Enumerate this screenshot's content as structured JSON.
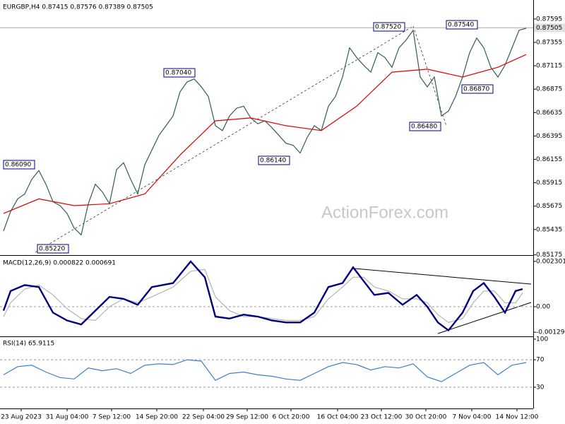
{
  "chart_data": [
    {
      "type": "line",
      "title": "EURGBP,H4  0.87415 0.87576 0.87389 0.87505",
      "watermark": "ActionForex.com",
      "xlim": [
        -0.5,
        75
      ],
      "ylim": [
        0.8518,
        0.8779
      ],
      "yticks": [
        0.87595,
        0.87355,
        0.87115,
        0.86875,
        0.86635,
        0.86395,
        0.86155,
        0.85915,
        0.85675,
        0.85435,
        0.85175
      ],
      "last_price": 0.87505,
      "annotations": [
        "0.86090",
        "0.85220",
        "0.87040",
        "0.86140",
        "0.87520",
        "0.87540",
        "0.86870",
        "0.86480"
      ],
      "series": [
        {
          "color": "#2f5f4f",
          "x": [
            0,
            1,
            2,
            3,
            4,
            5,
            6,
            7,
            8,
            9,
            10,
            11,
            12,
            13,
            14,
            15,
            16,
            17,
            18,
            19,
            20,
            21,
            22,
            23,
            24,
            25,
            26,
            27,
            28,
            29,
            30,
            31,
            32,
            33,
            34,
            35,
            36,
            37,
            38,
            39,
            40,
            41,
            42,
            43,
            44,
            45,
            46,
            47,
            48,
            49,
            50,
            51,
            52,
            53,
            54,
            55,
            56,
            57,
            58,
            59,
            60,
            61,
            62,
            63,
            64,
            65,
            66,
            67,
            68,
            69,
            70,
            71,
            72,
            73,
            74
          ],
          "values": [
            0.8542,
            0.8562,
            0.8575,
            0.858,
            0.8595,
            0.8604,
            0.859,
            0.8572,
            0.8568,
            0.856,
            0.8545,
            0.8538,
            0.857,
            0.859,
            0.8582,
            0.857,
            0.8605,
            0.8612,
            0.8595,
            0.858,
            0.861,
            0.8625,
            0.864,
            0.865,
            0.866,
            0.8685,
            0.8695,
            0.8698,
            0.869,
            0.868,
            0.865,
            0.8645,
            0.866,
            0.8668,
            0.867,
            0.8658,
            0.8652,
            0.8655,
            0.8648,
            0.864,
            0.8632,
            0.863,
            0.8622,
            0.8638,
            0.865,
            0.8645,
            0.867,
            0.868,
            0.87,
            0.873,
            0.872,
            0.8712,
            0.8705,
            0.8725,
            0.872,
            0.871,
            0.873,
            0.8738,
            0.8748,
            0.87,
            0.869,
            0.87,
            0.866,
            0.8665,
            0.868,
            0.87,
            0.8725,
            0.874,
            0.873,
            0.871,
            0.87,
            0.8712,
            0.873,
            0.8748,
            0.875
          ]
        },
        {
          "color": "#dd0000",
          "x": [
            0,
            5,
            10,
            15,
            20,
            25,
            30,
            35,
            40,
            45,
            50,
            55,
            60,
            65,
            70,
            74
          ],
          "values": [
            0.856,
            0.8575,
            0.8568,
            0.857,
            0.858,
            0.862,
            0.8655,
            0.8658,
            0.865,
            0.8645,
            0.867,
            0.8705,
            0.8708,
            0.87,
            0.871,
            0.8723
          ]
        }
      ]
    },
    {
      "type": "line",
      "title": "MACD(12,26,9) 0.000822 0.000691",
      "xlim": [
        -0.5,
        75
      ],
      "ylim": [
        -0.00147,
        0.00255
      ],
      "yticks": [
        0.002301,
        {
          "value": 0,
          "label": "0.00"
        },
        -0.001295
      ],
      "series": [
        {
          "color": "#b4b4b4",
          "x": [
            0,
            1,
            3,
            5,
            7,
            9,
            11,
            13,
            15,
            17,
            19,
            21,
            24,
            26.5,
            28.5,
            30,
            32,
            34,
            36,
            38,
            40,
            42,
            44,
            46,
            48,
            49.5,
            51,
            52.5,
            54.5,
            56.5,
            58.5,
            60,
            61.5,
            63,
            65,
            66.5,
            68,
            69.5,
            71,
            72.5,
            73.5
          ],
          "values": [
            -0.0005,
            0.0002,
            0.0009,
            0.0011,
            0.0006,
            -0.0001,
            -0.0006,
            -0.0007,
            0.0,
            0.0004,
            0.0002,
            0.0005,
            0.001,
            0.0018,
            0.0019,
            0.0005,
            -0.0002,
            -0.0005,
            -0.0005,
            -0.0006,
            -0.0007,
            -0.0007,
            -0.0005,
            0.0004,
            0.001,
            0.0015,
            0.0015,
            0.001,
            0.0008,
            0.0004,
            0.0004,
            0.0002,
            -0.0004,
            -0.0008,
            -0.0006,
            0.0002,
            0.0008,
            0.0008,
            0.0002,
            0.0002,
            0.0007
          ]
        },
        {
          "color": "#000080",
          "x": [
            0,
            1,
            3,
            5,
            7,
            9,
            11,
            13,
            15,
            17,
            19,
            21,
            24,
            26.5,
            28.5,
            30,
            32,
            34,
            36,
            38,
            40,
            42,
            44,
            46,
            48,
            49.5,
            51,
            52.5,
            54.5,
            56.5,
            58.5,
            60,
            61.5,
            63,
            65,
            66.5,
            68,
            69.5,
            71,
            72.5,
            73.5
          ],
          "values": [
            -0.0002,
            0.0008,
            0.0011,
            0.001,
            -0.0003,
            -0.0007,
            -0.0009,
            -0.0002,
            0.0005,
            0.0004,
            0.0001,
            0.001,
            0.0012,
            0.0023,
            0.0015,
            -0.0005,
            -0.0006,
            -0.0004,
            -0.0005,
            -0.0007,
            -0.0008,
            -0.0008,
            -0.0003,
            0.001,
            0.0012,
            0.002,
            0.0013,
            0.0006,
            0.0007,
            0.0001,
            0.0006,
            0.0,
            -0.0008,
            -0.0012,
            -0.0003,
            0.0008,
            0.0012,
            0.0005,
            -0.0003,
            0.0008,
            0.0009
          ]
        }
      ]
    },
    {
      "type": "line",
      "title": "RSI(14) 65.9115",
      "xlim": [
        -0.5,
        75
      ],
      "ylim": [
        -1,
        102
      ],
      "yticks": [
        100,
        70,
        30
      ],
      "xticks": [
        {
          "value": 2.5,
          "label": "23 Aug 2023"
        },
        {
          "value": 9,
          "label": "31 Aug 04:00"
        },
        {
          "value": 15.3,
          "label": "7 Sep 12:00"
        },
        {
          "value": 21.7,
          "label": "14 Sep 20:00"
        },
        {
          "value": 28.3,
          "label": "22 Sep 04:00"
        },
        {
          "value": 34.5,
          "label": "29 Sep 12:00"
        },
        {
          "value": 40.7,
          "label": "6 Oct 20:00"
        },
        {
          "value": 47.3,
          "label": "16 Oct 04:00"
        },
        {
          "value": 53.5,
          "label": "23 Oct 12:00"
        },
        {
          "value": 59.8,
          "label": "30 Oct 20:00"
        },
        {
          "value": 66.3,
          "label": "7 Nov 04:00"
        },
        {
          "value": 72.7,
          "label": "14 Nov 12:00"
        }
      ],
      "series": [
        {
          "color": "#3a7fd0",
          "x": [
            0,
            2,
            4,
            6,
            8,
            10,
            12,
            14,
            16,
            18,
            20,
            22,
            24,
            26,
            28,
            30,
            32,
            34,
            36,
            38,
            40,
            42,
            44,
            46,
            48,
            50,
            52,
            54,
            56,
            58,
            60,
            62,
            64,
            66,
            68,
            70,
            72,
            74
          ],
          "values": [
            48,
            60,
            62,
            52,
            44,
            42,
            58,
            54,
            57,
            50,
            62,
            64,
            63,
            70,
            68,
            40,
            50,
            52,
            48,
            46,
            42,
            40,
            50,
            60,
            66,
            63,
            55,
            60,
            58,
            64,
            45,
            38,
            50,
            62,
            66,
            48,
            62,
            66
          ]
        }
      ]
    }
  ]
}
